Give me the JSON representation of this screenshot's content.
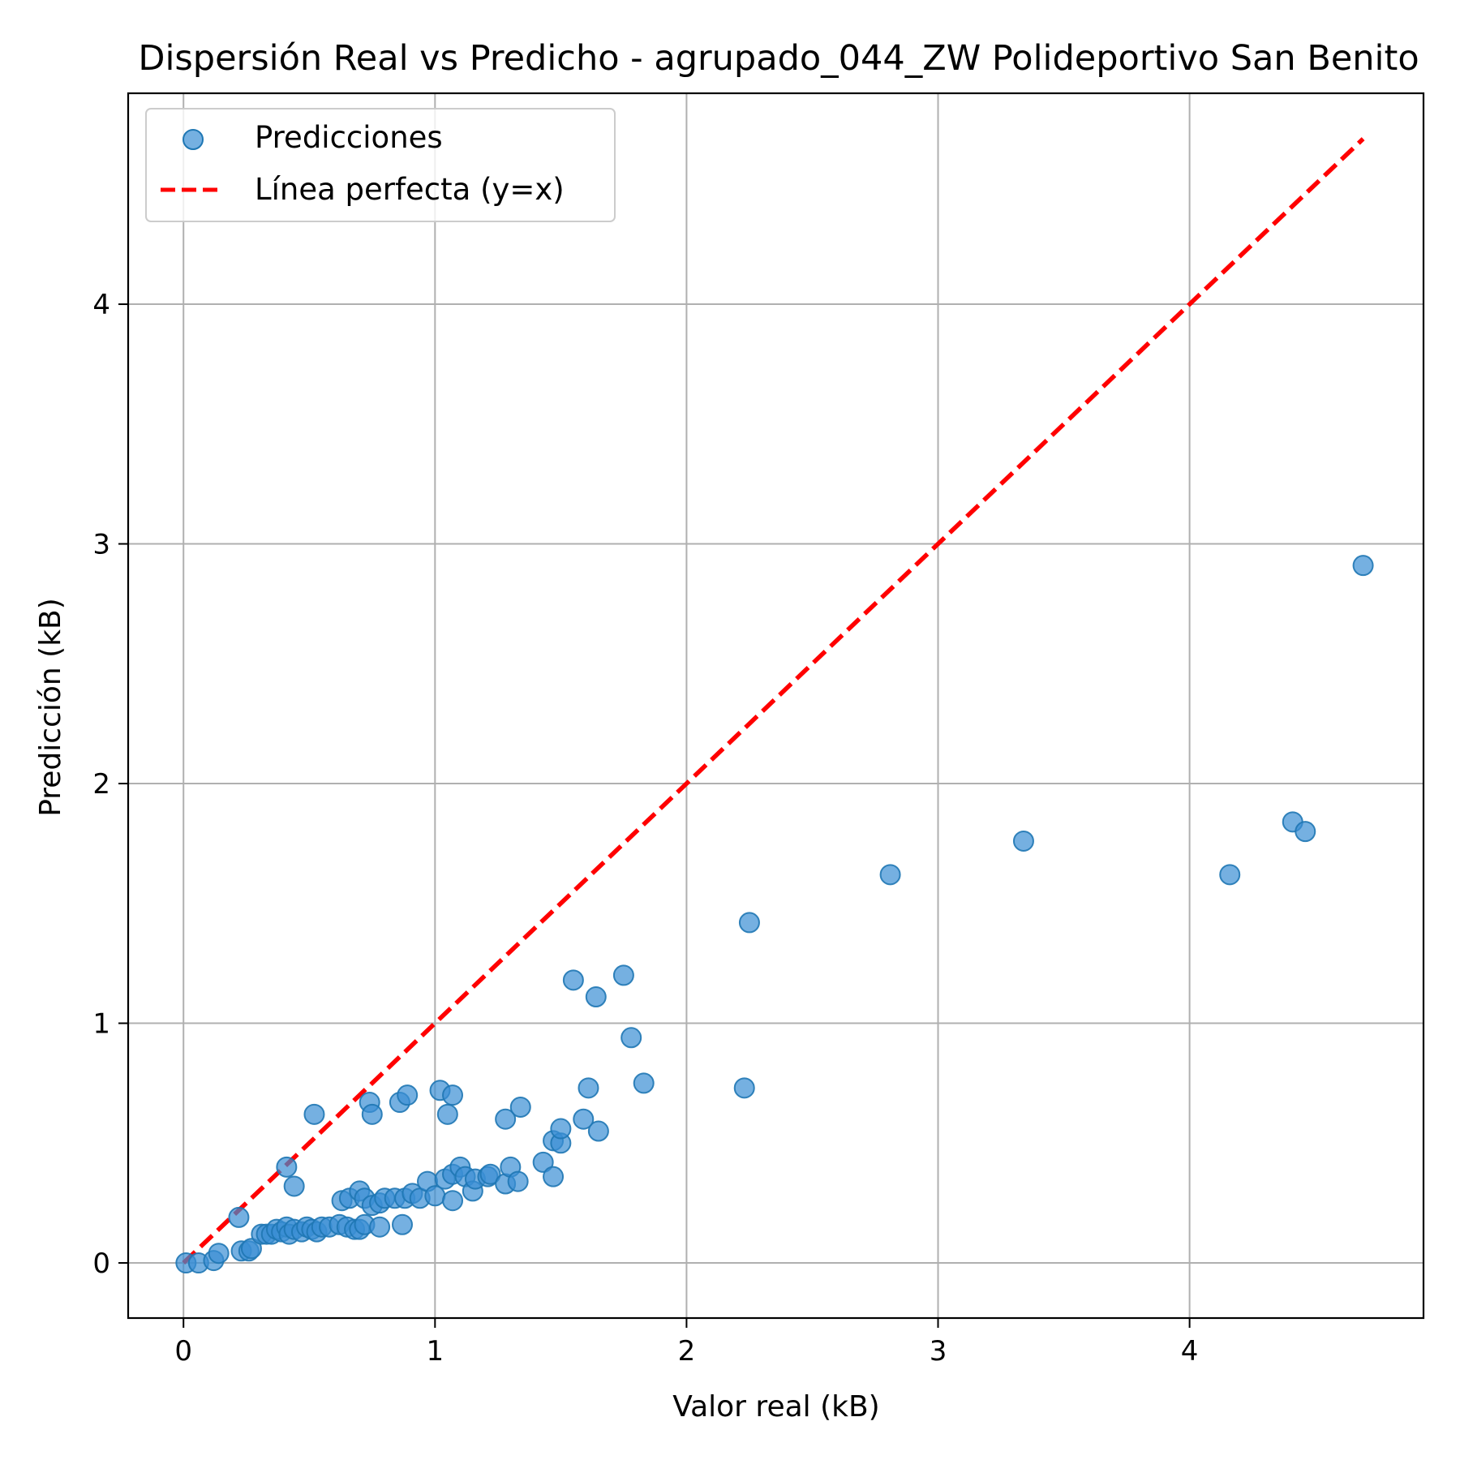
{
  "chart_data": {
    "type": "scatter",
    "title": "Dispersión Real vs Predicho - agrupado_044_ZW Polideportivo San Benito",
    "xlabel": "Valor real (kB)",
    "ylabel": "Predicción (kB)",
    "xlim": [
      -0.22,
      4.93
    ],
    "ylim": [
      -0.23,
      4.88
    ],
    "xticks": [
      0,
      1,
      2,
      3,
      4
    ],
    "yticks": [
      0,
      1,
      2,
      3,
      4
    ],
    "grid": true,
    "legend_position": "top-left",
    "colors": {
      "points": "#1f77b4",
      "points_fill": "#3a8fd4",
      "line": "#ff0000"
    },
    "series": [
      {
        "name": "Predicciones",
        "kind": "scatter",
        "points": [
          [
            0.01,
            0.0
          ],
          [
            0.06,
            0.0
          ],
          [
            0.12,
            0.01
          ],
          [
            0.14,
            0.04
          ],
          [
            0.22,
            0.19
          ],
          [
            0.23,
            0.05
          ],
          [
            0.26,
            0.05
          ],
          [
            0.27,
            0.06
          ],
          [
            0.31,
            0.12
          ],
          [
            0.33,
            0.12
          ],
          [
            0.35,
            0.12
          ],
          [
            0.37,
            0.14
          ],
          [
            0.39,
            0.13
          ],
          [
            0.41,
            0.15
          ],
          [
            0.42,
            0.12
          ],
          [
            0.44,
            0.14
          ],
          [
            0.47,
            0.13
          ],
          [
            0.49,
            0.15
          ],
          [
            0.51,
            0.14
          ],
          [
            0.53,
            0.13
          ],
          [
            0.55,
            0.15
          ],
          [
            0.58,
            0.15
          ],
          [
            0.62,
            0.16
          ],
          [
            0.65,
            0.15
          ],
          [
            0.68,
            0.14
          ],
          [
            0.7,
            0.14
          ],
          [
            0.72,
            0.16
          ],
          [
            0.78,
            0.15
          ],
          [
            0.87,
            0.16
          ],
          [
            0.63,
            0.26
          ],
          [
            0.66,
            0.27
          ],
          [
            0.7,
            0.3
          ],
          [
            0.72,
            0.27
          ],
          [
            0.75,
            0.24
          ],
          [
            0.78,
            0.25
          ],
          [
            0.8,
            0.27
          ],
          [
            0.84,
            0.27
          ],
          [
            0.88,
            0.27
          ],
          [
            0.91,
            0.29
          ],
          [
            0.94,
            0.27
          ],
          [
            0.97,
            0.34
          ],
          [
            1.0,
            0.28
          ],
          [
            1.04,
            0.35
          ],
          [
            1.07,
            0.37
          ],
          [
            1.07,
            0.26
          ],
          [
            1.1,
            0.4
          ],
          [
            1.12,
            0.36
          ],
          [
            1.15,
            0.3
          ],
          [
            1.16,
            0.35
          ],
          [
            1.21,
            0.36
          ],
          [
            1.22,
            0.37
          ],
          [
            1.28,
            0.33
          ],
          [
            1.3,
            0.4
          ],
          [
            1.33,
            0.34
          ],
          [
            0.41,
            0.4
          ],
          [
            0.44,
            0.32
          ],
          [
            0.52,
            0.62
          ],
          [
            0.74,
            0.67
          ],
          [
            0.75,
            0.62
          ],
          [
            0.86,
            0.67
          ],
          [
            0.89,
            0.7
          ],
          [
            1.02,
            0.72
          ],
          [
            1.05,
            0.62
          ],
          [
            1.07,
            0.7
          ],
          [
            1.28,
            0.6
          ],
          [
            1.34,
            0.65
          ],
          [
            1.43,
            0.42
          ],
          [
            1.47,
            0.36
          ],
          [
            1.47,
            0.51
          ],
          [
            1.5,
            0.5
          ],
          [
            1.5,
            0.56
          ],
          [
            1.55,
            1.18
          ],
          [
            1.59,
            0.6
          ],
          [
            1.61,
            0.73
          ],
          [
            1.64,
            1.11
          ],
          [
            1.65,
            0.55
          ],
          [
            1.75,
            1.2
          ],
          [
            1.78,
            0.94
          ],
          [
            1.83,
            0.75
          ],
          [
            2.23,
            0.73
          ],
          [
            2.25,
            1.42
          ],
          [
            2.81,
            1.62
          ],
          [
            3.34,
            1.76
          ],
          [
            4.16,
            1.62
          ],
          [
            4.41,
            1.84
          ],
          [
            4.46,
            1.8
          ],
          [
            4.69,
            2.91
          ]
        ]
      },
      {
        "name": "Línea perfecta (y=x)",
        "kind": "line",
        "x": [
          0.0,
          4.69
        ],
        "y": [
          0.0,
          4.69
        ]
      }
    ]
  }
}
